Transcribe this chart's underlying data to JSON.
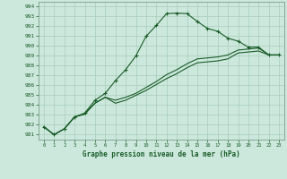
{
  "title": "Graphe pression niveau de la mer (hPa)",
  "bg_color": "#cce8dc",
  "grid_color": "#a8ccbc",
  "line_color": "#1a5c28",
  "spine_color": "#7a9c8a",
  "xlim": [
    -0.5,
    23.5
  ],
  "ylim": [
    980.5,
    994.5
  ],
  "yticks": [
    981,
    982,
    983,
    984,
    985,
    986,
    987,
    988,
    989,
    990,
    991,
    992,
    993,
    994
  ],
  "xticks": [
    0,
    1,
    2,
    3,
    4,
    5,
    6,
    7,
    8,
    9,
    10,
    11,
    12,
    13,
    14,
    15,
    16,
    17,
    18,
    19,
    20,
    21,
    22,
    23
  ],
  "series": [
    [
      981.8,
      981.0,
      981.6,
      982.8,
      983.2,
      984.5,
      985.2,
      986.5,
      987.6,
      989.0,
      991.0,
      992.1,
      993.3,
      993.35,
      993.3,
      992.5,
      991.8,
      991.5,
      990.8,
      990.5,
      989.9,
      989.9,
      989.1,
      989.1
    ],
    [
      981.8,
      981.0,
      981.6,
      982.8,
      983.1,
      984.2,
      984.8,
      984.5,
      984.8,
      985.2,
      985.8,
      986.4,
      987.1,
      987.6,
      988.2,
      988.7,
      988.8,
      988.9,
      989.1,
      989.6,
      989.7,
      989.8,
      989.1,
      989.1
    ],
    [
      981.8,
      981.0,
      981.6,
      982.8,
      983.1,
      984.2,
      984.8,
      984.2,
      984.5,
      985.0,
      985.5,
      986.1,
      986.7,
      987.2,
      987.8,
      988.3,
      988.4,
      988.5,
      988.7,
      989.3,
      989.4,
      989.5,
      989.1,
      989.1
    ]
  ]
}
